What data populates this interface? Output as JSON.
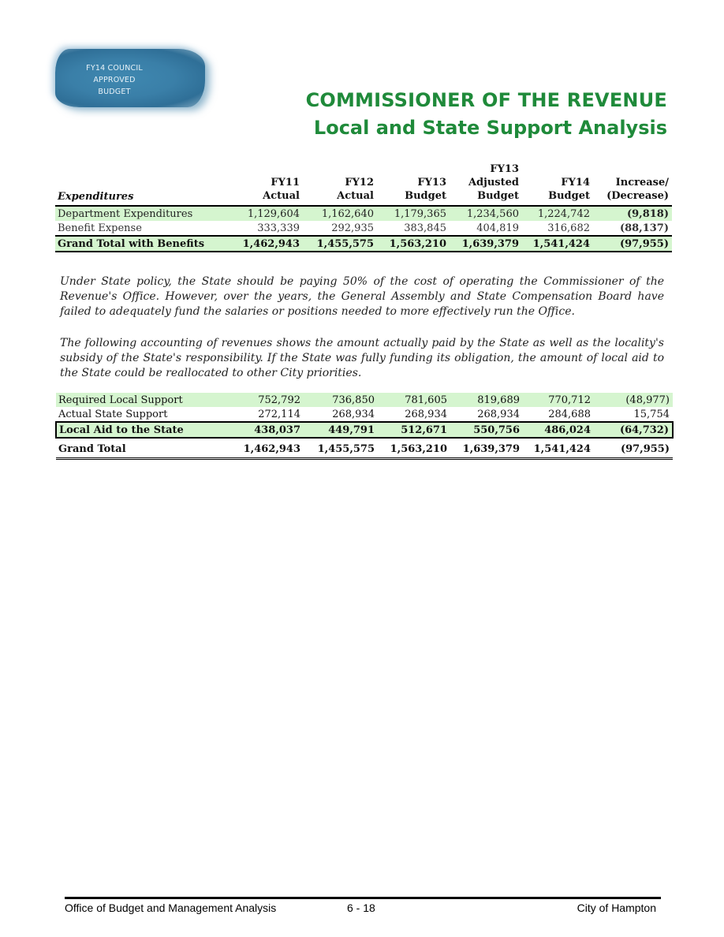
{
  "badge": {
    "lines": [
      "FY14 COUNCIL",
      "APPROVED",
      "BUDGET"
    ]
  },
  "title": {
    "line1": "COMMISSIONER OF THE REVENUE",
    "line2": "Local and State Support Analysis"
  },
  "expenditures": {
    "label": "Expenditures",
    "columns": [
      [
        "FY11",
        "Actual"
      ],
      [
        "FY12",
        "Actual"
      ],
      [
        "FY13",
        "Budget"
      ],
      [
        "FY13",
        "Adjusted",
        "Budget"
      ],
      [
        "FY14",
        "Budget"
      ],
      [
        "Increase/",
        "(Decrease)"
      ]
    ],
    "rows": [
      {
        "label": "Department Expenditures",
        "values": [
          "1,129,604",
          "1,162,640",
          "1,179,365",
          "1,234,560",
          "1,224,742",
          "(9,818)"
        ]
      },
      {
        "label": "Benefit Expense",
        "values": [
          "333,339",
          "292,935",
          "383,845",
          "404,819",
          "316,682",
          "(88,137)"
        ]
      },
      {
        "label": "Grand Total with Benefits",
        "values": [
          "1,462,943",
          "1,455,575",
          "1,563,210",
          "1,639,379",
          "1,541,424",
          "(97,955)"
        ]
      }
    ]
  },
  "paragraphs": [
    "Under State policy, the State should be paying 50% of the cost of operating the Commissioner of the Revenue's Office.  However, over the years, the General Assembly and State Compensation Board have failed to adequately fund the salaries or positions needed to more effectively run the Office.",
    "The following accounting of revenues shows the amount actually paid by the State as well as the locality's subsidy of the State's responsibility.  If the State was fully funding its obligation, the amount of local aid to the State could be reallocated to other City priorities."
  ],
  "support": {
    "rows": [
      {
        "label": "Required Local Support",
        "values": [
          "752,792",
          "736,850",
          "781,605",
          "819,689",
          "770,712",
          "(48,977)"
        ]
      },
      {
        "label": "Actual State Support",
        "values": [
          "272,114",
          "268,934",
          "268,934",
          "268,934",
          "284,688",
          "15,754"
        ]
      },
      {
        "label": "Local Aid to the State",
        "values": [
          "438,037",
          "449,791",
          "512,671",
          "550,756",
          "486,024",
          "(64,732)"
        ]
      },
      {
        "label": "Grand Total",
        "values": [
          "1,462,943",
          "1,455,575",
          "1,563,210",
          "1,639,379",
          "1,541,424",
          "(97,955)"
        ]
      }
    ]
  },
  "footer": {
    "left": "Office of Budget and Management Analysis",
    "page": "6 - 18",
    "right": "City of Hampton"
  }
}
